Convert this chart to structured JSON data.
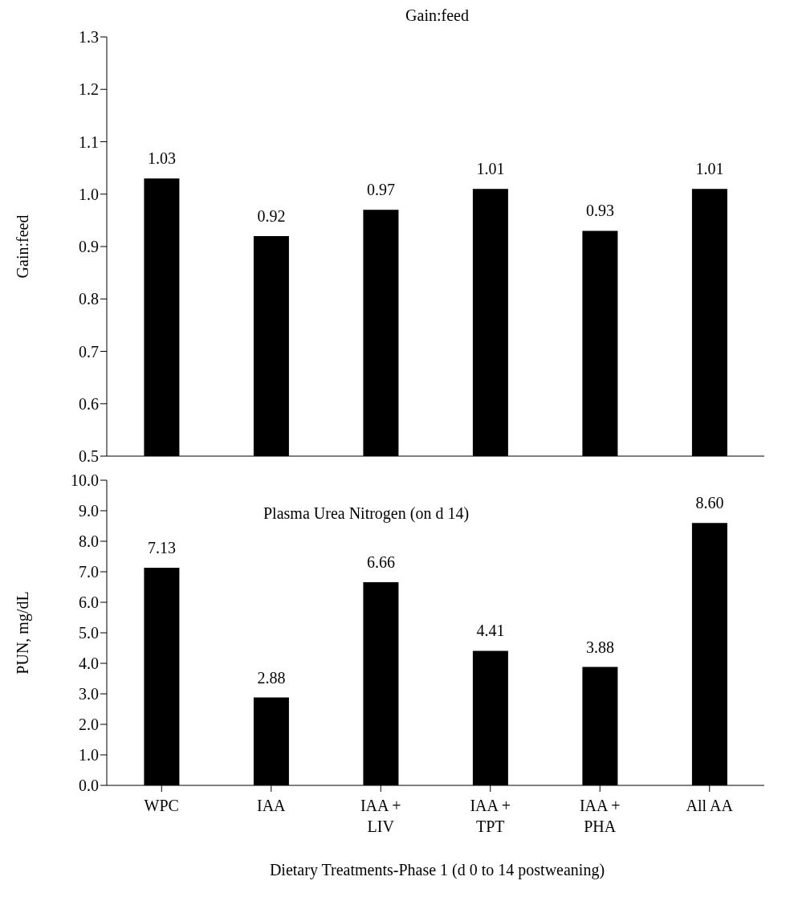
{
  "chart_data": [
    {
      "type": "bar",
      "title": "Gain:feed",
      "ylabel": "Gain:feed",
      "categories": [
        null,
        null,
        null,
        null,
        null,
        null
      ],
      "values": [
        1.03,
        0.92,
        0.97,
        1.01,
        0.93,
        1.01
      ],
      "color": "#000000",
      "ylim": [
        0.5,
        1.3
      ],
      "yticks": [
        {
          "value": 0.5,
          "label": "0.5"
        },
        {
          "value": 0.6,
          "label": "0.6"
        },
        {
          "value": 0.7,
          "label": "0.7"
        },
        {
          "value": 0.8,
          "label": "0.8"
        },
        {
          "value": 0.9,
          "label": "0.9"
        },
        {
          "value": 1.0,
          "label": "1.0"
        },
        {
          "value": 1.1,
          "label": "1.1"
        },
        {
          "value": 1.2,
          "label": "1.2"
        },
        {
          "value": 1.3,
          "label": "1.3"
        }
      ],
      "data_labels": true,
      "grid": false,
      "legend": false,
      "tick_labels": "y"
    },
    {
      "type": "bar",
      "title": "Plasma Urea Nitrogen (on d 14)",
      "ylabel": "PUN, mg/dL",
      "xlabel": "Dietary Treatments-Phase 1 (d 0 to 14 postweaning)",
      "categories": [
        "WPC",
        "IAA",
        "IAA + LIV",
        "IAA + TPT",
        "IAA + PHA",
        "All AA"
      ],
      "values": [
        7.13,
        2.88,
        6.66,
        4.41,
        3.88,
        8.6
      ],
      "value_labels": [
        "7.13",
        "2.88",
        "6.66",
        "4.41",
        "3.88",
        "8.60"
      ],
      "color": "#000000",
      "ylim": [
        0,
        10
      ],
      "yticks": [
        {
          "value": 0,
          "label": "0.0"
        },
        {
          "value": 1,
          "label": "1.0"
        },
        {
          "value": 2,
          "label": "2.0"
        },
        {
          "value": 3,
          "label": "3.0"
        },
        {
          "value": 4,
          "label": "4.0"
        },
        {
          "value": 5,
          "label": "5.0"
        },
        {
          "value": 6,
          "label": "6.0"
        },
        {
          "value": 7,
          "label": "7.0"
        },
        {
          "value": 8,
          "label": "8.0"
        },
        {
          "value": 9,
          "label": "9.0"
        },
        {
          "value": 10,
          "label": "10.0"
        }
      ],
      "grid": false,
      "legend": false
    }
  ]
}
